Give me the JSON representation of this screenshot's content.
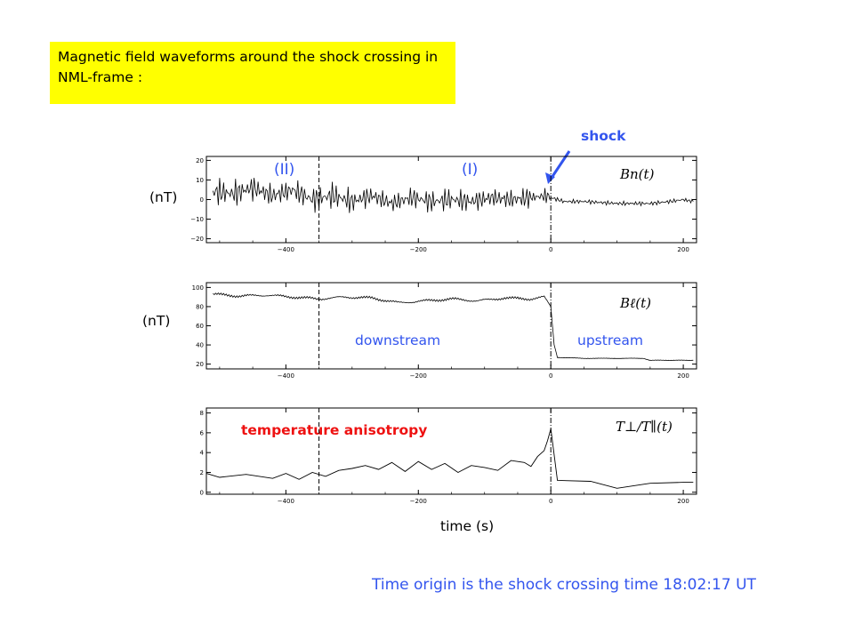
{
  "title": "Magnetic field waveforms around the shock crossing in NML-frame :",
  "footer": "Time origin is the shock crossing time 18:02:17 UT",
  "colors": {
    "title_bg": "#ffff00",
    "blue": "#3355ee",
    "red": "#ee1111",
    "ink": "#000000"
  },
  "annotations": {
    "shock": "shock",
    "region_II": "(II)",
    "region_I": "(I)",
    "downstream": "downstream",
    "upstream": "upstream",
    "temperature_anisotropy": "temperature  anisotropy",
    "unit_top": "(nT)",
    "unit_mid": "(nT)",
    "time_label": "time (s)"
  },
  "chart_data": [
    {
      "type": "line",
      "name_label": "Bn(t)",
      "xlim": [
        -520,
        220
      ],
      "ylim": [
        -22,
        22
      ],
      "xticks": [
        -400,
        -200,
        0,
        200
      ],
      "yticks": [
        -20,
        -10,
        0,
        10,
        20
      ],
      "markers": [
        {
          "x": -350,
          "style": "dashed"
        },
        {
          "x": 0,
          "style": "dashdot"
        }
      ],
      "series": [
        {
          "x": [
            -510,
            -480,
            -450,
            -420,
            -390,
            -360,
            -330,
            -300,
            -270,
            -240,
            -210,
            -180,
            -150,
            -120,
            -90,
            -60,
            -30,
            -5,
            0,
            20,
            50,
            100,
            150,
            180,
            200,
            215
          ],
          "y": [
            4,
            3,
            6,
            2,
            5,
            0,
            2,
            -1,
            2,
            -2,
            1,
            -1,
            0,
            -1,
            1,
            0,
            1,
            2,
            1,
            -1,
            -1,
            -2,
            -2,
            -1,
            0,
            -1
          ]
        }
      ]
    },
    {
      "type": "line",
      "name_label": "Bℓ(t)",
      "xlim": [
        -520,
        220
      ],
      "ylim": [
        15,
        105
      ],
      "xticks": [
        -400,
        -200,
        0,
        200
      ],
      "yticks": [
        20,
        40,
        60,
        80,
        100
      ],
      "markers": [
        {
          "x": -350,
          "style": "dashed"
        },
        {
          "x": 0,
          "style": "dashdot"
        }
      ],
      "series": [
        {
          "x": [
            -510,
            -470,
            -430,
            -390,
            -350,
            -310,
            -270,
            -230,
            -190,
            -150,
            -110,
            -70,
            -30,
            -10,
            0,
            5,
            10,
            50,
            100,
            140,
            150,
            215
          ],
          "y": [
            93,
            91,
            92,
            90,
            88,
            90,
            89,
            84,
            86,
            88,
            86,
            89,
            88,
            90,
            80,
            40,
            27,
            26,
            26,
            26,
            24,
            24
          ]
        }
      ]
    },
    {
      "type": "line",
      "name_label": "T⊥/T∥(t)",
      "xlim": [
        -520,
        220
      ],
      "ylim": [
        -0.2,
        8.5
      ],
      "xticks": [
        -400,
        -200,
        0,
        200
      ],
      "yticks": [
        0,
        2,
        4,
        6,
        8
      ],
      "markers": [
        {
          "x": -350,
          "style": "dashed"
        },
        {
          "x": 0,
          "style": "dashdot"
        }
      ],
      "series": [
        {
          "x": [
            -520,
            -500,
            -460,
            -420,
            -400,
            -380,
            -360,
            -340,
            -320,
            -300,
            -280,
            -260,
            -240,
            -220,
            -200,
            -180,
            -160,
            -140,
            -120,
            -100,
            -80,
            -60,
            -40,
            -30,
            -20,
            -10,
            -5,
            0,
            10,
            60,
            100,
            150,
            200,
            215
          ],
          "y": [
            1.9,
            1.5,
            1.8,
            1.4,
            1.9,
            1.3,
            2.0,
            1.6,
            2.2,
            2.4,
            2.7,
            2.3,
            3.0,
            2.1,
            3.1,
            2.3,
            2.9,
            2.0,
            2.7,
            2.5,
            2.2,
            3.2,
            3.0,
            2.6,
            3.6,
            4.2,
            5.2,
            6.4,
            1.2,
            1.1,
            0.4,
            0.9,
            1.0,
            1.0
          ]
        }
      ]
    }
  ]
}
